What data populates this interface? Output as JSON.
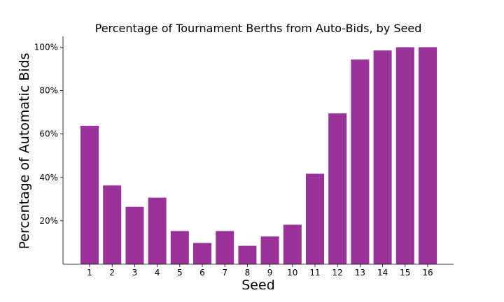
{
  "chart_data": {
    "type": "bar",
    "title": "Percentage of Tournament Berths from Auto-Bids, by Seed",
    "xlabel": "Seed",
    "ylabel": "Percentage of Automatic Bids",
    "categories": [
      "1",
      "2",
      "3",
      "4",
      "5",
      "6",
      "7",
      "8",
      "9",
      "10",
      "11",
      "12",
      "13",
      "14",
      "15",
      "16"
    ],
    "values": [
      63.8,
      36.3,
      26.5,
      30.7,
      15.3,
      9.8,
      15.3,
      8.5,
      12.8,
      18.2,
      41.7,
      69.5,
      94.3,
      98.5,
      100,
      100
    ],
    "ylim": [
      0,
      105
    ],
    "yticks": [
      20,
      40,
      60,
      80,
      100
    ],
    "ytick_labels": [
      "20%",
      "40%",
      "60%",
      "80%",
      "100%"
    ],
    "bar_color": "#993399",
    "grid": false,
    "legend": "none"
  }
}
